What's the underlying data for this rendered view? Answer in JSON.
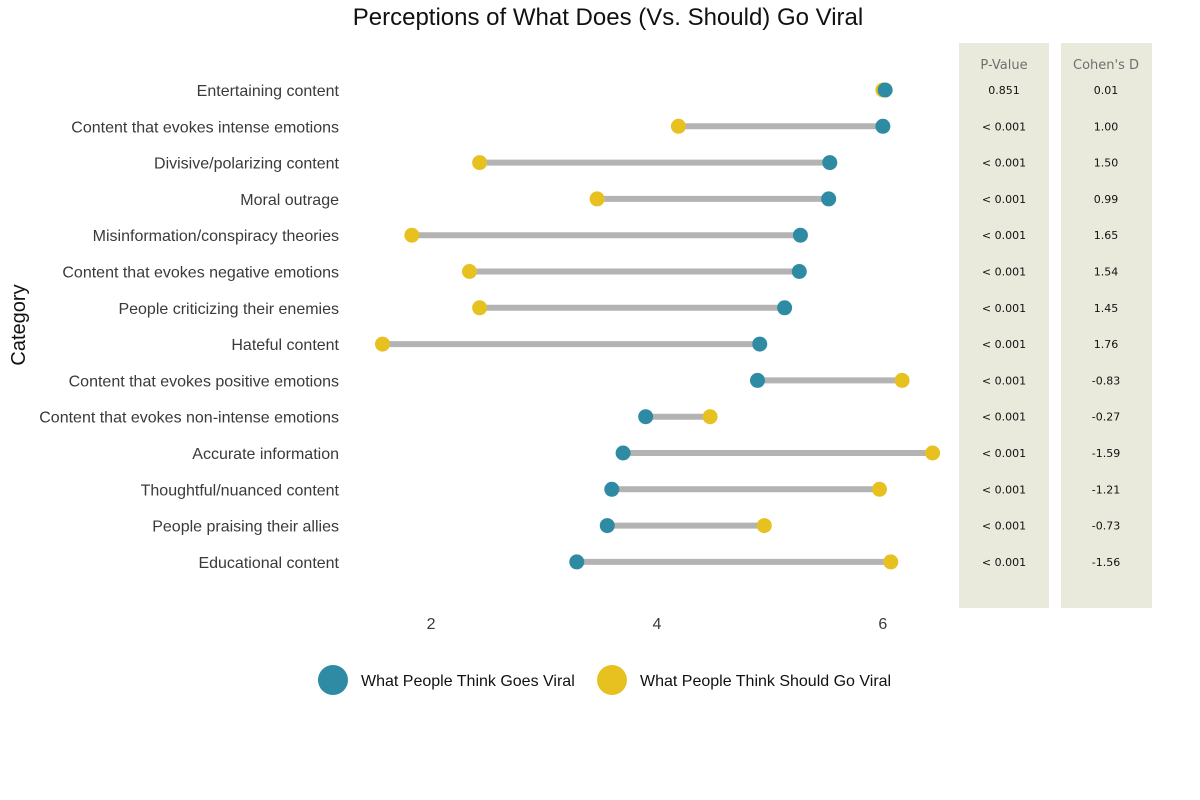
{
  "chart_data": {
    "type": "dumbbell",
    "title": "Perceptions of What Does (Vs. Should) Go Viral",
    "xlabel": "",
    "ylabel": "Category",
    "x_ticks": [
      2,
      4,
      6
    ],
    "xlim": [
      1.3,
      6.55
    ],
    "grid": false,
    "legend_position": "bottom",
    "colors": {
      "goes": "#2e8ba3",
      "should": "#e6c120",
      "segment": "#b3b3b3",
      "table_bg": "#e9eadb"
    },
    "series": [
      {
        "key": "goes",
        "name": "What People Think Goes Viral"
      },
      {
        "key": "should",
        "name": "What People Think Should Go Viral"
      }
    ],
    "table_headers": {
      "p": "P-Value",
      "d": "Cohen's D"
    },
    "rows": [
      {
        "category": "Entertaining content",
        "goes": 6.02,
        "should": 6.0,
        "p": "0.851",
        "d": "0.01"
      },
      {
        "category": "Content that evokes intense emotions",
        "goes": 6.0,
        "should": 4.19,
        "p": "< 0.001",
        "d": "1.00"
      },
      {
        "category": "Divisive/polarizing content",
        "goes": 5.53,
        "should": 2.43,
        "p": "< 0.001",
        "d": "1.50"
      },
      {
        "category": "Moral outrage",
        "goes": 5.52,
        "should": 3.47,
        "p": "< 0.001",
        "d": "0.99"
      },
      {
        "category": "Misinformation/conspiracy theories",
        "goes": 5.27,
        "should": 1.83,
        "p": "< 0.001",
        "d": "1.65"
      },
      {
        "category": "Content that evokes negative emotions",
        "goes": 5.26,
        "should": 2.34,
        "p": "< 0.001",
        "d": "1.54"
      },
      {
        "category": "People criticizing their enemies",
        "goes": 5.13,
        "should": 2.43,
        "p": "< 0.001",
        "d": "1.45"
      },
      {
        "category": "Hateful content",
        "goes": 4.91,
        "should": 1.57,
        "p": "< 0.001",
        "d": "1.76"
      },
      {
        "category": "Content that evokes positive emotions",
        "goes": 4.89,
        "should": 6.17,
        "p": "< 0.001",
        "d": "-0.83"
      },
      {
        "category": "Content that evokes non-intense emotions",
        "goes": 3.9,
        "should": 4.47,
        "p": "< 0.001",
        "d": "-0.27"
      },
      {
        "category": "Accurate information",
        "goes": 3.7,
        "should": 6.44,
        "p": "< 0.001",
        "d": "-1.59"
      },
      {
        "category": "Thoughtful/nuanced content",
        "goes": 3.6,
        "should": 5.97,
        "p": "< 0.001",
        "d": "-1.21"
      },
      {
        "category": "People praising their allies",
        "goes": 3.56,
        "should": 4.95,
        "p": "< 0.001",
        "d": "-0.73"
      },
      {
        "category": "Educational content",
        "goes": 3.29,
        "should": 6.07,
        "p": "< 0.001",
        "d": "-1.56"
      }
    ]
  }
}
